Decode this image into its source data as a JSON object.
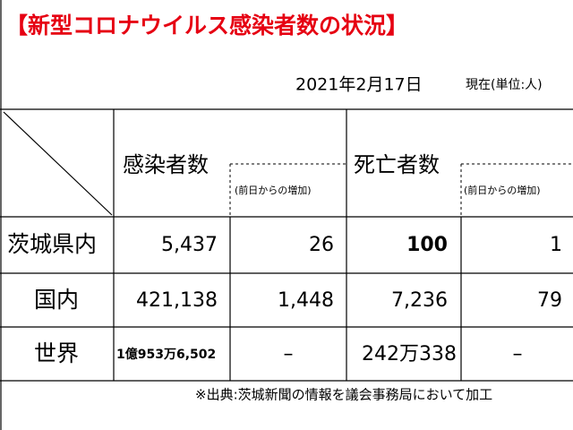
{
  "header": {
    "title": "【新型コロナウイルス感染者数の状況】",
    "date": "2021年2月17日",
    "unit": "現在(単位:人)"
  },
  "table": {
    "columns": [
      "感染者数",
      "(前日からの増加)",
      "死亡者数",
      "(前日からの増加)"
    ],
    "rows": [
      [
        "茨城県内",
        "5,437",
        "26",
        "100",
        "1"
      ],
      [
        "国内",
        "421,138",
        "1,448",
        "7,236",
        "79"
      ],
      [
        "世界",
        "1億953万6,502",
        "–",
        "242万338",
        "–"
      ]
    ]
  },
  "footnote": "※出典:茨城新聞の情報を議会事務局において加工"
}
